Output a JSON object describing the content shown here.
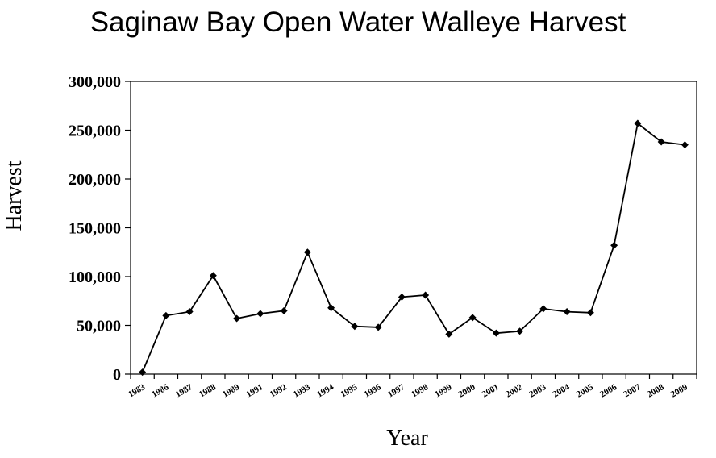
{
  "chart_data": {
    "type": "line",
    "title": "Saginaw Bay Open Water Walleye Harvest",
    "xlabel": "Year",
    "ylabel": "Harvest",
    "ylim": [
      0,
      300000
    ],
    "yticks": [
      0,
      50000,
      100000,
      150000,
      200000,
      250000,
      300000
    ],
    "ytick_labels": [
      "0",
      "50,000",
      "100,000",
      "150,000",
      "200,000",
      "250,000",
      "300,000"
    ],
    "categories": [
      "1983",
      "1986",
      "1987",
      "1988",
      "1989",
      "1991",
      "1992",
      "1993",
      "1994",
      "1995",
      "1996",
      "1997",
      "1998",
      "1999",
      "2000",
      "2001",
      "2002",
      "2003",
      "2004",
      "2005",
      "2006",
      "2007",
      "2008",
      "2009"
    ],
    "values": [
      2000,
      60000,
      64000,
      101000,
      57000,
      62000,
      65000,
      125000,
      68000,
      49000,
      48000,
      79000,
      81000,
      41000,
      58000,
      42000,
      44000,
      67000,
      64000,
      63000,
      132000,
      257000,
      238000,
      235000
    ],
    "grid": false,
    "legend": "none",
    "line_color": "#000000",
    "marker": "diamond"
  }
}
